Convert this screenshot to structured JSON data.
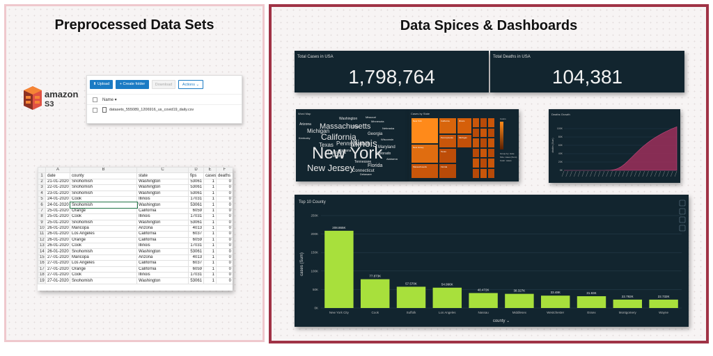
{
  "left": {
    "title": "Preprocessed Data Sets",
    "aws": {
      "brand": "amazon",
      "service": "S3"
    },
    "s3": {
      "upload": "Upload",
      "create_folder": "Create folder",
      "download": "Download",
      "actions": "Actions",
      "name_header": "Name",
      "file": "datasets_555089_1206916_us_covid19_daily.csv"
    },
    "sheet": {
      "columns": [
        "",
        "A",
        "B",
        "C",
        "D",
        "E",
        "F"
      ],
      "rows": [
        [
          "1",
          "date",
          "county",
          "state",
          "fips",
          "cases",
          "deaths"
        ],
        [
          "2",
          "21-01-2020",
          "Snohomish",
          "Washington",
          "53061",
          "1",
          "0"
        ],
        [
          "3",
          "22-01-2020",
          "Snohomish",
          "Washington",
          "53061",
          "1",
          "0"
        ],
        [
          "4",
          "23-01-2020",
          "Snohomish",
          "Washington",
          "53061",
          "1",
          "0"
        ],
        [
          "5",
          "24-01-2020",
          "Cook",
          "Illinois",
          "17031",
          "1",
          "0"
        ],
        [
          "6",
          "24-01-2020",
          "Snohomish",
          "Washington",
          "53061",
          "1",
          "0"
        ],
        [
          "7",
          "25-01-2020",
          "Orange",
          "California",
          "6059",
          "1",
          "0"
        ],
        [
          "8",
          "25-01-2020",
          "Cook",
          "Illinois",
          "17031",
          "1",
          "0"
        ],
        [
          "9",
          "25-01-2020",
          "Snohomish",
          "Washington",
          "53061",
          "1",
          "0"
        ],
        [
          "10",
          "26-01-2020",
          "Maricopa",
          "Arizona",
          "4013",
          "1",
          "0"
        ],
        [
          "11",
          "26-01-2020",
          "Los Angeles",
          "California",
          "6037",
          "1",
          "0"
        ],
        [
          "12",
          "26-01-2020",
          "Orange",
          "California",
          "6059",
          "1",
          "0"
        ],
        [
          "13",
          "26-01-2020",
          "Cook",
          "Illinois",
          "17031",
          "1",
          "0"
        ],
        [
          "14",
          "26-01-2020",
          "Snohomish",
          "Washington",
          "53061",
          "1",
          "0"
        ],
        [
          "15",
          "27-01-2020",
          "Maricopa",
          "Arizona",
          "4013",
          "1",
          "0"
        ],
        [
          "16",
          "27-01-2020",
          "Los Angeles",
          "California",
          "6037",
          "1",
          "0"
        ],
        [
          "17",
          "27-01-2020",
          "Orange",
          "California",
          "6059",
          "1",
          "0"
        ],
        [
          "18",
          "27-01-2020",
          "Cook",
          "Illinois",
          "17031",
          "1",
          "0"
        ],
        [
          "19",
          "27-01-2020",
          "Snohomish",
          "Washington",
          "53061",
          "1",
          "0"
        ]
      ]
    }
  },
  "right": {
    "title": "Data Spices & Dashboards",
    "total_cases": {
      "label": "Total Cases in USA",
      "value": "1,798,764"
    },
    "total_deaths": {
      "label": "Total Deaths in USA",
      "value": "104,381"
    },
    "word_map": {
      "title": "Word Map",
      "words": [
        "New York",
        "New Jersey",
        "California",
        "Illinois",
        "Massachusetts",
        "Pennsylvania",
        "Michigan",
        "Texas",
        "Florida",
        "Georgia",
        "Maryland",
        "Louisiana",
        "Connecticut",
        "Virginia",
        "Washington",
        "Ohio",
        "Colorado",
        "Indiana",
        "Tennessee",
        "Arizona",
        "Minnesota",
        "Iowa",
        "Wisconsin",
        "Missouri",
        "Nebraska",
        "Kentucky",
        "Alabama",
        "Delaware"
      ]
    },
    "treemap": {
      "title": "Cases by State",
      "legend": [
        "Colors",
        "Group by: state",
        "Size: cases (Sum)",
        "Color: cases"
      ],
      "tiles": [
        "New York",
        "New Jersey",
        "California",
        "Illinois",
        "Massachusetts",
        "Pennsylvania",
        "Michigan",
        "Texas",
        "Florida"
      ]
    },
    "deaths_growth": {
      "title": "Deaths Growth",
      "y_label": "deaths (Sum)",
      "y_ticks": [
        "0K",
        "20K",
        "40K",
        "60K",
        "80K",
        "100K"
      ]
    },
    "top10": {
      "title": "Top 10 County"
    }
  },
  "colors": {
    "dark_bg": "#12252f",
    "bar": "#a8e03c",
    "area": "#9c2f5a",
    "treemap": "#d55f0a"
  },
  "chart_data": [
    {
      "type": "bar",
      "title": "Top 10 County",
      "xlabel": "county",
      "ylabel": "cases (Sum)",
      "ylim": [
        0,
        250000
      ],
      "y_ticks": [
        "0K",
        "50K",
        "100K",
        "150K",
        "200K",
        "250K"
      ],
      "categories": [
        "New York City",
        "Cook",
        "Suffolk",
        "Los Angeles",
        "Nassau",
        "Middlesex",
        "Westchester",
        "Essex",
        "Montgomery",
        "Wayne"
      ],
      "values": [
        208865,
        77873,
        57570,
        54996,
        40472,
        38327,
        33480,
        31930,
        22792,
        22732
      ],
      "labels": [
        "208.865K",
        "77.873K",
        "57.570K",
        "54.996K",
        "40.472K",
        "38.327K",
        "33.48K",
        "31.93K",
        "22.792K",
        "22.732K"
      ]
    },
    {
      "type": "area",
      "title": "Deaths Growth",
      "ylabel": "deaths (Sum)",
      "ylim": [
        0,
        120000
      ],
      "values": [
        0,
        0,
        0,
        0,
        0,
        0,
        0,
        0,
        0,
        0,
        0,
        0,
        0,
        0,
        0,
        0,
        0,
        0,
        0,
        0,
        10,
        50,
        150,
        400,
        900,
        1800,
        3200,
        5200,
        7800,
        11000,
        14800,
        19000,
        23600,
        28400,
        33200,
        38000,
        42800,
        47400,
        51900,
        56200,
        60300,
        64200,
        67900,
        71400,
        74700,
        77900,
        80900,
        83800,
        86500,
        89100,
        91600,
        94000,
        96300,
        98500,
        100600,
        102500,
        104381
      ]
    }
  ]
}
